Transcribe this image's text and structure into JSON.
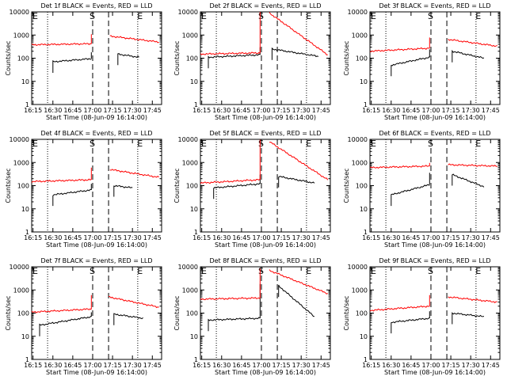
{
  "colors": {
    "events": "#000000",
    "lld": "#ff0000",
    "background": "#ffffff"
  },
  "chart_data": [
    {
      "type": "line",
      "title": "Det 1f BLACK = Events, RED = LLD",
      "ylabel": "Counts/sec",
      "xlabel": "Start Time (08-Jun-09 16:14:00)",
      "x_ticks": [
        "16:15",
        "16:30",
        "16:45",
        "17:00",
        "17:15",
        "17:30",
        "17:45"
      ],
      "y_ticks": [
        "1",
        "10",
        "100",
        "1000",
        "10000"
      ],
      "y_scale": "log",
      "ylim": [
        1,
        10000
      ],
      "markers": [
        "E",
        "S",
        "E"
      ],
      "series": [
        {
          "name": "Events",
          "color": "#000000",
          "segments": [
            [
              "16:30",
              70,
              "16:59",
              95
            ],
            [
              "17:19",
              150,
              "17:35",
              110
            ]
          ]
        },
        {
          "name": "LLD",
          "color": "#ff0000",
          "segments": [
            [
              "16:14",
              380,
              "16:59",
              420
            ],
            [
              "17:13",
              900,
              "17:50",
              500
            ]
          ]
        }
      ]
    },
    {
      "type": "line",
      "title": "Det 2f BLACK = Events, RED = LLD",
      "ylabel": "Counts/sec",
      "xlabel": "Start Time (08-Jun-09 16:14:00)",
      "x_ticks": [
        "16:15",
        "16:30",
        "16:45",
        "17:00",
        "17:15",
        "17:30",
        "17:45"
      ],
      "y_ticks": [
        "1",
        "10",
        "100",
        "1000",
        "10000"
      ],
      "y_scale": "log",
      "ylim": [
        1,
        10000
      ],
      "markers": [
        "E",
        "S",
        "E"
      ],
      "series": [
        {
          "name": "Events",
          "color": "#000000",
          "segments": [
            [
              "16:20",
              110,
              "16:59",
              140
            ],
            [
              "17:08",
              250,
              "17:43",
              120
            ]
          ]
        },
        {
          "name": "LLD",
          "color": "#ff0000",
          "segments": [
            [
              "16:14",
              150,
              "16:59",
              170
            ],
            [
              "17:06",
              9000,
              "17:50",
              140
            ]
          ]
        }
      ]
    },
    {
      "type": "line",
      "title": "Det 3f BLACK = Events, RED = LLD",
      "ylabel": "Counts/sec",
      "xlabel": "Start Time (08-Jun-09 16:14:00)",
      "x_ticks": [
        "16:15",
        "16:30",
        "16:45",
        "17:00",
        "17:15",
        "17:30",
        "17:45"
      ],
      "y_ticks": [
        "1",
        "10",
        "100",
        "1000",
        "10000"
      ],
      "y_scale": "log",
      "ylim": [
        1,
        10000
      ],
      "markers": [
        "E",
        "S",
        "E"
      ],
      "series": [
        {
          "name": "Events",
          "color": "#000000",
          "segments": [
            [
              "16:30",
              50,
              "16:59",
              110
            ],
            [
              "17:16",
              200,
              "17:40",
              100
            ]
          ]
        },
        {
          "name": "LLD",
          "color": "#ff0000",
          "segments": [
            [
              "16:14",
              200,
              "16:59",
              270
            ],
            [
              "17:13",
              650,
              "17:50",
              330
            ]
          ]
        }
      ]
    },
    {
      "type": "line",
      "title": "Det 4f BLACK = Events, RED = LLD",
      "ylabel": "Counts/sec",
      "xlabel": "Start Time (08-Jun-09 16:14:00)",
      "x_ticks": [
        "16:15",
        "16:30",
        "16:45",
        "17:00",
        "17:15",
        "17:30",
        "17:45"
      ],
      "y_ticks": [
        "1",
        "10",
        "100",
        "1000",
        "10000"
      ],
      "y_scale": "log",
      "ylim": [
        1,
        10000
      ],
      "markers": [
        "E",
        "S",
        "E"
      ],
      "series": [
        {
          "name": "Events",
          "color": "#000000",
          "segments": [
            [
              "16:30",
              40,
              "16:59",
              65
            ],
            [
              "17:16",
              100,
              "17:30",
              80
            ]
          ]
        },
        {
          "name": "LLD",
          "color": "#ff0000",
          "segments": [
            [
              "16:14",
              150,
              "16:59",
              180
            ],
            [
              "17:13",
              500,
              "17:50",
              230
            ]
          ]
        }
      ]
    },
    {
      "type": "line",
      "title": "Det 5f BLACK = Events, RED = LLD",
      "ylabel": "Counts/sec",
      "xlabel": "Start Time (08-Jun-09 16:14:00)",
      "x_ticks": [
        "16:15",
        "16:30",
        "16:45",
        "17:00",
        "17:15",
        "17:30",
        "17:45"
      ],
      "y_ticks": [
        "1",
        "10",
        "100",
        "1000",
        "10000"
      ],
      "y_scale": "log",
      "ylim": [
        1,
        10000
      ],
      "markers": [
        "E",
        "S",
        "E"
      ],
      "series": [
        {
          "name": "Events",
          "color": "#000000",
          "segments": [
            [
              "16:24",
              80,
              "16:59",
              120
            ],
            [
              "17:13",
              250,
              "17:40",
              130
            ]
          ]
        },
        {
          "name": "LLD",
          "color": "#ff0000",
          "segments": [
            [
              "16:14",
              130,
              "16:59",
              180
            ],
            [
              "17:06",
              8000,
              "17:50",
              180
            ]
          ]
        }
      ]
    },
    {
      "type": "line",
      "title": "Det 6f BLACK = Events, RED = LLD",
      "ylabel": "Counts/sec",
      "xlabel": "Start Time (08-Jun-09 16:14:00)",
      "x_ticks": [
        "16:15",
        "16:30",
        "16:45",
        "17:00",
        "17:15",
        "17:30",
        "17:45"
      ],
      "y_ticks": [
        "1",
        "10",
        "100",
        "1000",
        "10000"
      ],
      "y_scale": "log",
      "ylim": [
        1,
        10000
      ],
      "markers": [
        "E",
        "S",
        "E"
      ],
      "series": [
        {
          "name": "Events",
          "color": "#000000",
          "segments": [
            [
              "16:30",
              40,
              "16:59",
              110
            ],
            [
              "17:16",
              300,
              "17:40",
              90
            ]
          ]
        },
        {
          "name": "LLD",
          "color": "#ff0000",
          "segments": [
            [
              "16:14",
              600,
              "16:59",
              700
            ],
            [
              "17:13",
              800,
              "17:50",
              700
            ]
          ]
        }
      ]
    },
    {
      "type": "line",
      "title": "Det 7f BLACK = Events, RED = LLD",
      "ylabel": "Counts/sec",
      "xlabel": "Start Time (08-Jun-09 16:14:00)",
      "x_ticks": [
        "16:15",
        "16:30",
        "16:45",
        "17:00",
        "17:15",
        "17:30",
        "17:45"
      ],
      "y_ticks": [
        "1",
        "10",
        "100",
        "1000",
        "10000"
      ],
      "y_scale": "log",
      "ylim": [
        1,
        10000
      ],
      "markers": [
        "E",
        "S",
        "E"
      ],
      "series": [
        {
          "name": "Events",
          "color": "#000000",
          "segments": [
            [
              "16:20",
              30,
              "16:59",
              70
            ],
            [
              "17:16",
              90,
              "17:38",
              60
            ]
          ]
        },
        {
          "name": "LLD",
          "color": "#ff0000",
          "segments": [
            [
              "16:14",
              110,
              "16:59",
              150
            ],
            [
              "17:12",
              500,
              "17:50",
              180
            ]
          ]
        }
      ]
    },
    {
      "type": "line",
      "title": "Det 8f BLACK = Events, RED = LLD",
      "ylabel": "Counts/sec",
      "xlabel": "Start Time (08-Jun-09 16:14:00)",
      "x_ticks": [
        "16:15",
        "16:30",
        "16:45",
        "17:00",
        "17:15",
        "17:30",
        "17:45"
      ],
      "y_ticks": [
        "1",
        "10",
        "100",
        "1000",
        "10000"
      ],
      "y_scale": "log",
      "ylim": [
        1,
        10000
      ],
      "markers": [
        "E",
        "S",
        "E"
      ],
      "series": [
        {
          "name": "Events",
          "color": "#000000",
          "segments": [
            [
              "16:20",
              50,
              "16:59",
              60
            ],
            [
              "17:13",
              1500,
              "17:40",
              70
            ]
          ]
        },
        {
          "name": "LLD",
          "color": "#ff0000",
          "segments": [
            [
              "16:14",
              400,
              "16:59",
              450
            ],
            [
              "17:06",
              7000,
              "17:50",
              700
            ]
          ]
        }
      ]
    },
    {
      "type": "line",
      "title": "Det 9f BLACK = Events, RED = LLD",
      "ylabel": "Counts/sec",
      "xlabel": "Start Time (08-Jun-09 16:14:00)",
      "x_ticks": [
        "16:15",
        "16:30",
        "16:45",
        "17:00",
        "17:15",
        "17:30",
        "17:45"
      ],
      "y_ticks": [
        "1",
        "10",
        "100",
        "1000",
        "10000"
      ],
      "y_scale": "log",
      "ylim": [
        1,
        10000
      ],
      "markers": [
        "E",
        "S",
        "E"
      ],
      "series": [
        {
          "name": "Events",
          "color": "#000000",
          "segments": [
            [
              "16:30",
              40,
              "16:59",
              60
            ],
            [
              "17:16",
              100,
              "17:40",
              70
            ]
          ]
        },
        {
          "name": "LLD",
          "color": "#ff0000",
          "segments": [
            [
              "16:14",
              130,
              "16:59",
              200
            ],
            [
              "17:13",
              500,
              "17:50",
              300
            ]
          ]
        }
      ]
    }
  ]
}
